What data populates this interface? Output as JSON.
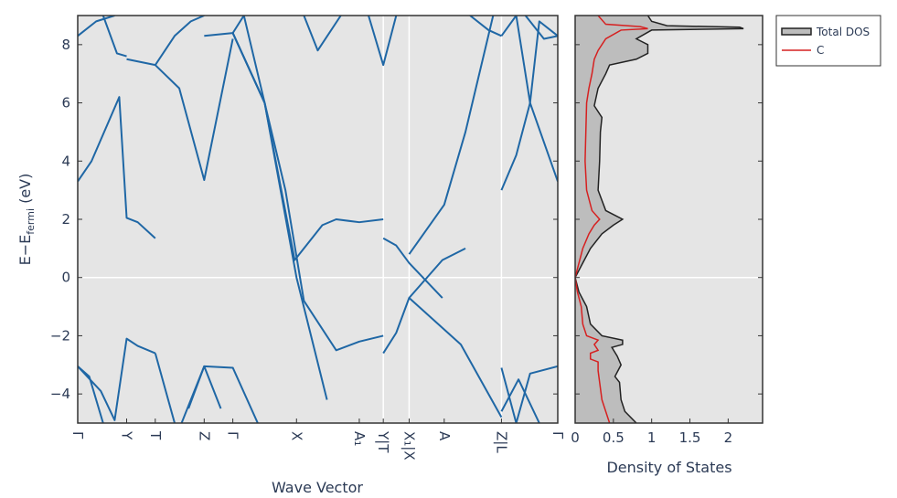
{
  "colors": {
    "panel_bg": "#e5e5e5",
    "band": "#1f67a5",
    "total_dos_line": "#222222",
    "total_dos_fill": "#bdbdbd",
    "c_dos": "#d62020",
    "ref_line": "#ffffff",
    "text": "#2b3a55"
  },
  "chart_data": [
    {
      "type": "line",
      "name": "band structure",
      "xlabel": "Wave Vector",
      "ylabel_main": "E−E",
      "ylabel_sub": "fermi",
      "ylabel_unit": " (eV)",
      "ylim": [
        -5,
        9
      ],
      "yticks": [
        -4,
        -2,
        0,
        2,
        4,
        6,
        8
      ],
      "kpoints": [
        {
          "label": "Γ",
          "x": 0
        },
        {
          "label": "Y",
          "x": 1.06
        },
        {
          "label": "T",
          "x": 1.68
        },
        {
          "label": "Z",
          "x": 2.74
        },
        {
          "label": "Γ",
          "x": 3.36
        },
        {
          "label": "X",
          "x": 4.74
        },
        {
          "label": "A₁",
          "x": 6.1
        },
        {
          "label": "Y|T",
          "x": 6.62
        },
        {
          "label": "X₁|X",
          "x": 7.18
        },
        {
          "label": "A",
          "x": 7.94
        },
        {
          "label": "Z|L",
          "x": 9.18
        },
        {
          "label": "Γ",
          "x": 10.4
        }
      ],
      "xlim": [
        0,
        10.4
      ],
      "discontinuities": [
        6.62,
        7.18,
        9.18
      ],
      "zero_line": 0,
      "bands": [
        {
          "x": [
            0,
            0.5,
            0.8,
            1.06,
            1.3,
            1.68
          ],
          "y": [
            -3.05,
            -3.9,
            -4.9,
            -2.1,
            -2.35,
            -2.6
          ]
        },
        {
          "x": [
            0,
            0.25,
            0.55
          ],
          "y": [
            -3.05,
            -3.4,
            -5.0
          ]
        },
        {
          "x": [
            1.68,
            2.1
          ],
          "y": [
            -2.6,
            -5.0
          ]
        },
        {
          "x": [
            2.25,
            2.74,
            3.36,
            3.9
          ],
          "y": [
            -5.0,
            -3.05,
            -3.1,
            -5.0
          ]
        },
        {
          "x": [
            2.4,
            2.74,
            3.1
          ],
          "y": [
            -4.5,
            -3.05,
            -4.5
          ]
        },
        {
          "x": [
            0,
            0.3,
            0.9,
            1.06,
            1.3,
            1.68
          ],
          "y": [
            3.3,
            4.0,
            6.2,
            2.05,
            1.9,
            1.35
          ]
        },
        {
          "x": [
            0,
            0.4,
            0.8
          ],
          "y": [
            8.3,
            8.8,
            9.0
          ]
        },
        {
          "x": [
            0.55,
            0.85,
            1.06
          ],
          "y": [
            9.0,
            7.7,
            7.6
          ]
        },
        {
          "x": [
            1.06,
            1.68
          ],
          "y": [
            7.5,
            7.3
          ]
        },
        {
          "x": [
            1.68,
            2.2,
            2.74,
            3.36
          ],
          "y": [
            7.3,
            6.5,
            3.35,
            8.2
          ]
        },
        {
          "x": [
            1.68,
            2.1,
            2.45,
            2.74
          ],
          "y": [
            7.3,
            8.3,
            8.8,
            9.0
          ]
        },
        {
          "x": [
            2.74,
            3.36,
            4.05
          ],
          "y": [
            8.3,
            8.4,
            6.0
          ]
        },
        {
          "x": [
            3.36,
            3.6,
            4.05,
            4.74,
            5.4
          ],
          "y": [
            8.4,
            9.0,
            6.0,
            0.0,
            -4.2
          ]
        },
        {
          "x": [
            3.36,
            4.05,
            4.7,
            5.3,
            5.6,
            6.1,
            6.62
          ],
          "y": [
            8.4,
            6.0,
            0.6,
            1.8,
            2.0,
            1.9,
            2.0
          ]
        },
        {
          "x": [
            3.36,
            4.05,
            4.5,
            4.9,
            5.6,
            6.1,
            6.62
          ],
          "y": [
            8.4,
            6.0,
            3.0,
            -0.8,
            -2.5,
            -2.2,
            -2.0
          ]
        },
        {
          "x": [
            4.9,
            5.2,
            5.7
          ],
          "y": [
            9.0,
            7.8,
            9.0
          ]
        },
        {
          "x": [
            6.3,
            6.62,
            6.9
          ],
          "y": [
            9.0,
            7.3,
            9.0
          ]
        },
        {
          "x": [
            6.62,
            6.9,
            7.18,
            7.9
          ],
          "y": [
            1.35,
            1.1,
            0.5,
            -0.7
          ]
        },
        {
          "x": [
            6.62,
            6.9,
            7.18,
            7.9,
            8.4
          ],
          "y": [
            -2.6,
            -1.9,
            -0.7,
            0.6,
            1.0
          ]
        },
        {
          "x": [
            7.18,
            8.3,
            9.18
          ],
          "y": [
            -0.7,
            -2.3,
            -4.8
          ]
        },
        {
          "x": [
            7.18,
            7.94,
            8.4,
            9.0
          ],
          "y": [
            0.8,
            2.5,
            5.0,
            9.0
          ]
        },
        {
          "x": [
            8.5,
            8.9,
            9.18
          ],
          "y": [
            9.0,
            8.5,
            8.3
          ]
        },
        {
          "x": [
            9.18,
            9.5,
            9.8,
            10.4
          ],
          "y": [
            -3.1,
            -5.0,
            -3.3,
            -3.05
          ]
        },
        {
          "x": [
            9.18,
            9.55,
            10.0
          ],
          "y": [
            -4.6,
            -3.5,
            -5.0
          ]
        },
        {
          "x": [
            9.18,
            9.5,
            9.8,
            10.4
          ],
          "y": [
            8.3,
            9.0,
            6.0,
            3.3
          ]
        },
        {
          "x": [
            9.18,
            9.5,
            9.8,
            10.0,
            10.4
          ],
          "y": [
            3.0,
            4.2,
            6.0,
            8.8,
            8.3
          ]
        },
        {
          "x": [
            9.7,
            10.1,
            10.4
          ],
          "y": [
            9.0,
            8.2,
            8.3
          ]
        }
      ]
    },
    {
      "type": "area",
      "name": "density of states",
      "xlabel": "Density of States",
      "xlim": [
        0,
        2.45
      ],
      "xticks": [
        0,
        0.5,
        1,
        1.5,
        2
      ],
      "xtick_labels": [
        "0",
        "0.5",
        "1",
        "1.5",
        "2"
      ],
      "ylim": [
        -5,
        9
      ],
      "legend_position": "outside-right",
      "series": [
        {
          "name": "Total DOS",
          "energy": [
            -5.0,
            -4.6,
            -4.2,
            -3.6,
            -3.4,
            -3.0,
            -2.7,
            -2.4,
            -2.3,
            -2.15,
            -2.0,
            -1.6,
            -1.0,
            -0.5,
            0.0,
            0.5,
            1.0,
            1.5,
            1.8,
            2.0,
            2.3,
            3.0,
            4.0,
            5.0,
            5.5,
            5.9,
            6.5,
            7.0,
            7.3,
            7.5,
            7.7,
            8.0,
            8.2,
            8.5,
            8.55,
            8.6,
            8.65,
            8.8,
            9.0
          ],
          "values": [
            0.8,
            0.65,
            0.6,
            0.58,
            0.52,
            0.6,
            0.55,
            0.48,
            0.62,
            0.62,
            0.35,
            0.2,
            0.15,
            0.05,
            0.0,
            0.1,
            0.2,
            0.35,
            0.5,
            0.62,
            0.4,
            0.3,
            0.32,
            0.33,
            0.35,
            0.25,
            0.3,
            0.4,
            0.45,
            0.8,
            0.95,
            0.95,
            0.8,
            1.0,
            2.2,
            2.15,
            1.2,
            1.0,
            0.95
          ]
        },
        {
          "name": "C",
          "energy": [
            -5.0,
            -4.6,
            -4.2,
            -3.8,
            -3.2,
            -2.9,
            -2.8,
            -2.6,
            -2.5,
            -2.3,
            -2.15,
            -2.0,
            -1.6,
            -1.0,
            -0.5,
            0.0,
            0.5,
            1.0,
            1.5,
            1.8,
            2.0,
            2.3,
            3.0,
            4.0,
            5.0,
            6.0,
            6.5,
            7.0,
            7.5,
            7.8,
            8.2,
            8.5,
            8.55,
            8.62,
            8.7,
            9.0
          ],
          "values": [
            0.45,
            0.4,
            0.35,
            0.33,
            0.3,
            0.3,
            0.2,
            0.2,
            0.3,
            0.25,
            0.3,
            0.15,
            0.1,
            0.08,
            0.03,
            0.0,
            0.05,
            0.1,
            0.18,
            0.25,
            0.32,
            0.22,
            0.15,
            0.13,
            0.14,
            0.15,
            0.18,
            0.22,
            0.25,
            0.3,
            0.4,
            0.6,
            0.95,
            0.85,
            0.4,
            0.3
          ]
        }
      ]
    }
  ],
  "legend": {
    "items": [
      {
        "label": "Total DOS",
        "kind": "filled"
      },
      {
        "label": "C",
        "kind": "line"
      }
    ]
  }
}
